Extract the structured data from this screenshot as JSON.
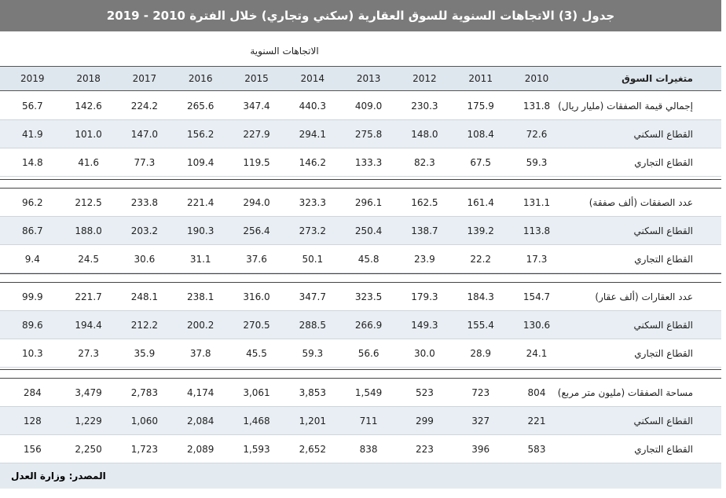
{
  "title": "جدول (3) الاتجاهات السنوية للسوق العقارية (سكني وتجاري) خلال الفترة 2010 - 2019",
  "subheader": "الاتجاهات السنوية",
  "header": {
    "label": "متغيرات السوق",
    "years": [
      2010,
      2011,
      2012,
      2013,
      2014,
      2015,
      2016,
      2017,
      2018,
      2019
    ]
  },
  "groups": [
    {
      "rows": [
        {
          "label": "إجمالي قيمة الصفقات (مليار ريال)",
          "values": [
            "131.8",
            "175.9",
            "230.3",
            "409.0",
            "440.3",
            "347.4",
            "265.6",
            "224.2",
            "142.6",
            "56.7"
          ]
        },
        {
          "label": "القطاع السكني",
          "values": [
            "72.6",
            "108.4",
            "148.0",
            "275.8",
            "294.1",
            "227.9",
            "156.2",
            "147.0",
            "101.0",
            "41.9"
          ]
        },
        {
          "label": "القطاع التجاري",
          "values": [
            "59.3",
            "67.5",
            "82.3",
            "133.3",
            "146.2",
            "119.5",
            "109.4",
            "77.3",
            "41.6",
            "14.8"
          ]
        }
      ]
    },
    {
      "rows": [
        {
          "label": "عدد الصفقات (ألف صفقة)",
          "values": [
            "131.1",
            "161.4",
            "162.5",
            "296.1",
            "323.3",
            "294.0",
            "221.4",
            "233.8",
            "212.5",
            "96.2"
          ]
        },
        {
          "label": "القطاع السكني",
          "values": [
            "113.8",
            "139.2",
            "138.7",
            "250.4",
            "273.2",
            "256.4",
            "190.3",
            "203.2",
            "188.0",
            "86.7"
          ]
        },
        {
          "label": "القطاع التجاري",
          "values": [
            "17.3",
            "22.2",
            "23.9",
            "45.8",
            "50.1",
            "37.6",
            "31.1",
            "30.6",
            "24.5",
            "9.4"
          ]
        }
      ]
    },
    {
      "rows": [
        {
          "label": "عدد العقارات (ألف عقار)",
          "values": [
            "154.7",
            "184.3",
            "179.3",
            "323.5",
            "347.7",
            "316.0",
            "238.1",
            "248.1",
            "221.7",
            "99.9"
          ]
        },
        {
          "label": "القطاع السكني",
          "values": [
            "130.6",
            "155.4",
            "149.3",
            "266.9",
            "288.5",
            "270.5",
            "200.2",
            "212.2",
            "194.4",
            "89.6"
          ]
        },
        {
          "label": "القطاع التجاري",
          "values": [
            "24.1",
            "28.9",
            "30.0",
            "56.6",
            "59.3",
            "45.5",
            "37.8",
            "35.9",
            "27.3",
            "10.3"
          ]
        }
      ]
    },
    {
      "rows": [
        {
          "label": "مساحة الصفقات (مليون متر مربع)",
          "values": [
            "804",
            "723",
            "523",
            "1,549",
            "3,853",
            "3,061",
            "4,174",
            "2,783",
            "3,479",
            "284"
          ]
        },
        {
          "label": "القطاع السكني",
          "values": [
            "221",
            "327",
            "299",
            "711",
            "1,201",
            "1,468",
            "2,084",
            "1,060",
            "1,229",
            "128"
          ]
        },
        {
          "label": "القطاع التجاري",
          "values": [
            "583",
            "396",
            "223",
            "838",
            "2,652",
            "1,593",
            "2,089",
            "1,723",
            "2,250",
            "156"
          ]
        }
      ]
    }
  ],
  "source": "المصدر: وزارة العدل"
}
